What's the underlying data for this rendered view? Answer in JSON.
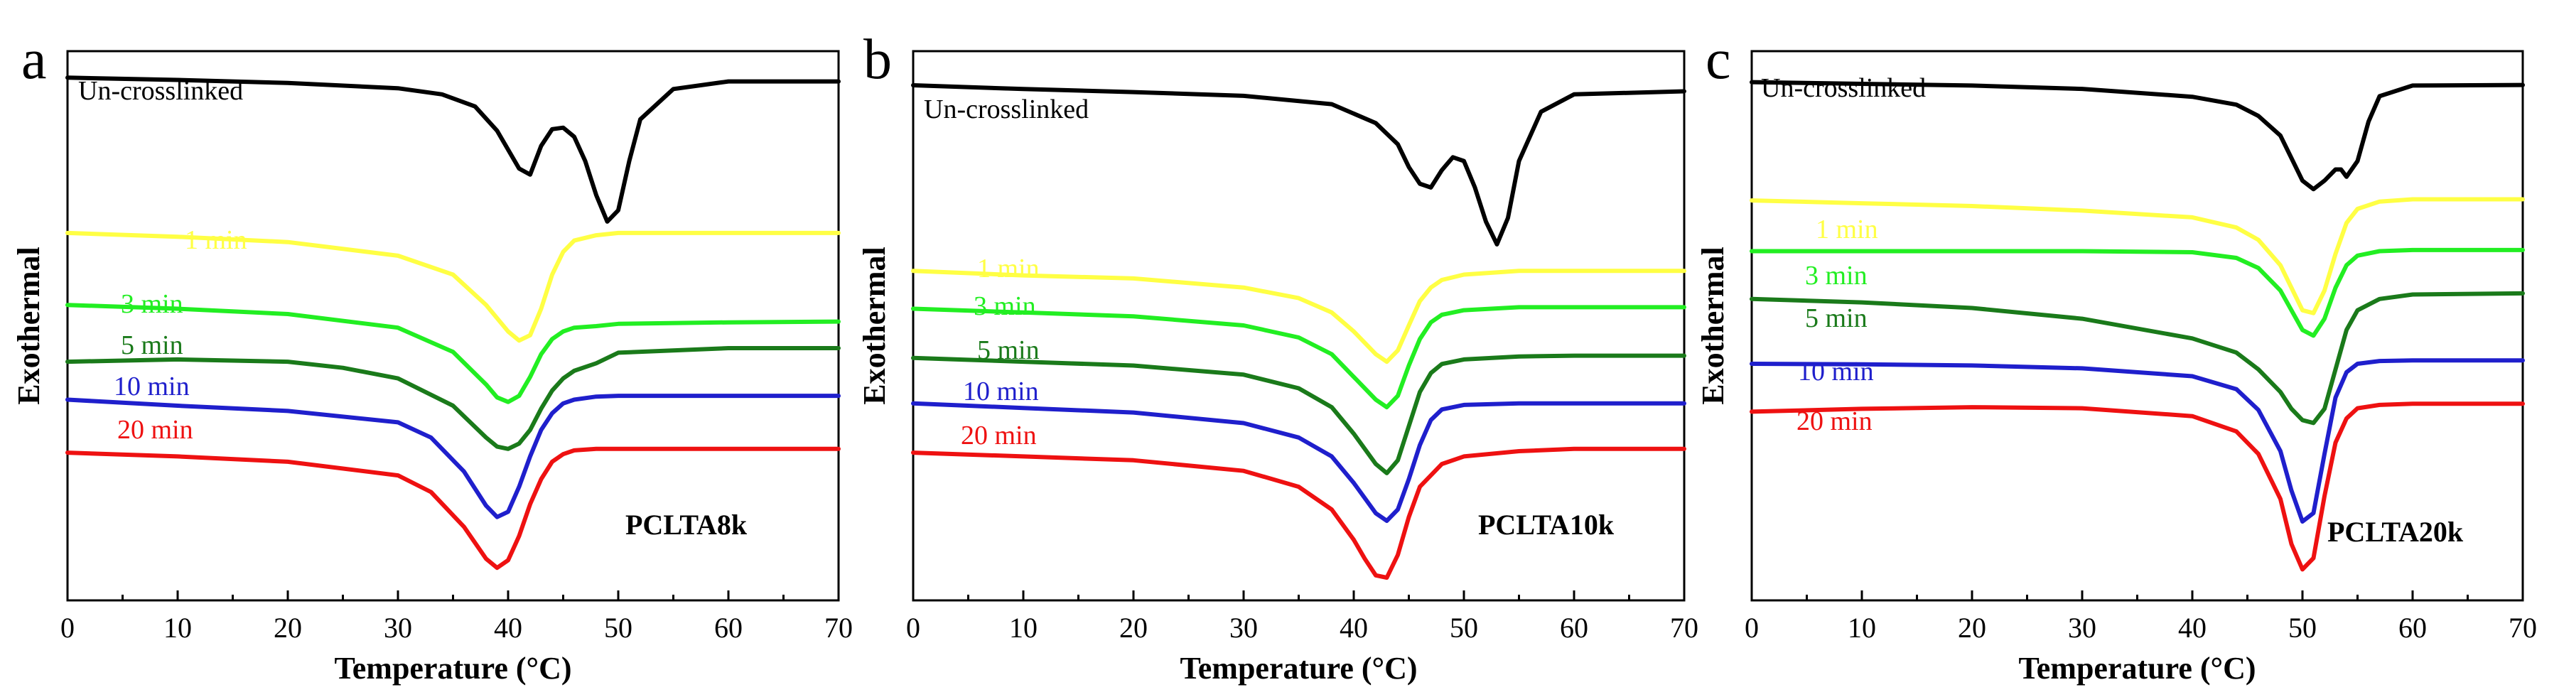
{
  "chart_data": [
    {
      "panel": "a",
      "type": "line",
      "title": "",
      "xlabel": "Temperature (°C)",
      "ylabel": "Exothermal",
      "sample": "PCLTA8k",
      "xlim": [
        0,
        70
      ],
      "xticks": [
        0,
        10,
        20,
        30,
        40,
        50,
        60,
        70
      ],
      "grid": false,
      "series": [
        {
          "name": "Un-crosslinked",
          "color": "#000000",
          "baseline": 0.0,
          "x": [
            0,
            10,
            20,
            30,
            34,
            37,
            39,
            41,
            42,
            43,
            44,
            45,
            46,
            47,
            48,
            49,
            50,
            51,
            52,
            55,
            60,
            70
          ],
          "y": [
            0,
            -0.03,
            -0.07,
            -0.14,
            -0.22,
            -0.38,
            -0.7,
            -1.2,
            -1.28,
            -0.9,
            -0.68,
            -0.66,
            -0.78,
            -1.1,
            -1.55,
            -1.9,
            -1.75,
            -1.1,
            -0.55,
            -0.15,
            -0.05,
            -0.05
          ]
        },
        {
          "name": "1 min",
          "color": "#ffff44",
          "baseline": -2.05,
          "x": [
            0,
            10,
            20,
            30,
            35,
            38,
            40,
            41,
            42,
            43,
            44,
            45,
            46,
            48,
            50,
            60,
            70
          ],
          "y": [
            0,
            -0.05,
            -0.12,
            -0.3,
            -0.55,
            -0.95,
            -1.3,
            -1.42,
            -1.35,
            -1.0,
            -0.55,
            -0.25,
            -0.1,
            -0.03,
            0,
            0,
            0
          ]
        },
        {
          "name": "3 min",
          "color": "#22ee22",
          "baseline": -3.0,
          "x": [
            0,
            10,
            20,
            30,
            35,
            38,
            39,
            40,
            41,
            42,
            43,
            44,
            45,
            46,
            48,
            50,
            60,
            70
          ],
          "y": [
            0,
            -0.05,
            -0.12,
            -0.3,
            -0.62,
            -1.05,
            -1.22,
            -1.28,
            -1.2,
            -0.95,
            -0.65,
            -0.45,
            -0.35,
            -0.3,
            -0.28,
            -0.25,
            -0.23,
            -0.22
          ]
        },
        {
          "name": "5 min",
          "color": "#1a7a1a",
          "baseline": -3.75,
          "x": [
            0,
            10,
            20,
            25,
            30,
            35,
            38,
            39,
            40,
            41,
            42,
            43,
            44,
            45,
            46,
            48,
            50,
            60,
            70
          ],
          "y": [
            0,
            0.03,
            0.0,
            -0.08,
            -0.22,
            -0.58,
            -1.0,
            -1.12,
            -1.15,
            -1.08,
            -0.9,
            -0.62,
            -0.38,
            -0.22,
            -0.12,
            -0.02,
            0.12,
            0.18,
            0.18
          ]
        },
        {
          "name": "10 min",
          "color": "#1f1fcc",
          "baseline": -4.25,
          "x": [
            0,
            10,
            20,
            30,
            33,
            36,
            38,
            39,
            40,
            41,
            42,
            43,
            44,
            45,
            46,
            48,
            50,
            60,
            70
          ],
          "y": [
            0,
            -0.08,
            -0.15,
            -0.3,
            -0.5,
            -0.95,
            -1.4,
            -1.55,
            -1.48,
            -1.15,
            -0.75,
            -0.4,
            -0.18,
            -0.05,
            0.0,
            0.04,
            0.05,
            0.05,
            0.05
          ]
        },
        {
          "name": "20 min",
          "color": "#ee1111",
          "baseline": -4.95,
          "x": [
            0,
            10,
            20,
            30,
            33,
            36,
            38,
            39,
            40,
            41,
            42,
            43,
            44,
            45,
            46,
            48,
            50,
            60,
            70
          ],
          "y": [
            0,
            -0.05,
            -0.12,
            -0.3,
            -0.52,
            -0.98,
            -1.4,
            -1.52,
            -1.42,
            -1.1,
            -0.68,
            -0.35,
            -0.12,
            -0.02,
            0.03,
            0.05,
            0.05,
            0.05,
            0.05
          ]
        }
      ]
    },
    {
      "panel": "b",
      "type": "line",
      "title": "",
      "xlabel": "Temperature (°C)",
      "ylabel": "Exothermal",
      "sample": "PCLTA10k",
      "xlim": [
        0,
        70
      ],
      "xticks": [
        0,
        10,
        20,
        30,
        40,
        50,
        60,
        70
      ],
      "grid": false,
      "series": [
        {
          "name": "Un-crosslinked",
          "color": "#000000",
          "baseline": 0.0,
          "x": [
            0,
            10,
            20,
            30,
            38,
            42,
            44,
            45,
            46,
            47,
            48,
            49,
            50,
            51,
            52,
            53,
            54,
            55,
            57,
            60,
            70
          ],
          "y": [
            0,
            -0.05,
            -0.09,
            -0.14,
            -0.25,
            -0.5,
            -0.78,
            -1.08,
            -1.3,
            -1.35,
            -1.12,
            -0.95,
            -1.0,
            -1.35,
            -1.8,
            -2.1,
            -1.75,
            -1.0,
            -0.35,
            -0.12,
            -0.08
          ]
        },
        {
          "name": "1 min",
          "color": "#ffff44",
          "baseline": -2.45,
          "x": [
            0,
            10,
            20,
            30,
            35,
            38,
            40,
            42,
            43,
            44,
            45,
            46,
            47,
            48,
            50,
            55,
            60,
            70
          ],
          "y": [
            0,
            -0.06,
            -0.1,
            -0.22,
            -0.36,
            -0.55,
            -0.8,
            -1.1,
            -1.2,
            -1.05,
            -0.72,
            -0.4,
            -0.22,
            -0.12,
            -0.05,
            0.0,
            0.0,
            0.0
          ]
        },
        {
          "name": "3 min",
          "color": "#22ee22",
          "baseline": -2.95,
          "x": [
            0,
            10,
            20,
            30,
            35,
            38,
            40,
            42,
            43,
            44,
            45,
            46,
            47,
            48,
            50,
            55,
            60,
            70
          ],
          "y": [
            0,
            -0.05,
            -0.1,
            -0.22,
            -0.38,
            -0.6,
            -0.9,
            -1.2,
            -1.3,
            -1.15,
            -0.75,
            -0.4,
            -0.18,
            -0.08,
            -0.02,
            0.02,
            0.02,
            0.02
          ]
        },
        {
          "name": "5 min",
          "color": "#1a7a1a",
          "baseline": -3.6,
          "x": [
            0,
            10,
            20,
            30,
            35,
            38,
            40,
            42,
            43,
            44,
            45,
            46,
            47,
            48,
            50,
            55,
            60,
            70
          ],
          "y": [
            0,
            -0.05,
            -0.1,
            -0.22,
            -0.4,
            -0.65,
            -1.0,
            -1.4,
            -1.52,
            -1.35,
            -0.9,
            -0.45,
            -0.2,
            -0.08,
            -0.02,
            0.02,
            0.03,
            0.03
          ]
        },
        {
          "name": "10 min",
          "color": "#1f1fcc",
          "baseline": -4.2,
          "x": [
            0,
            10,
            20,
            30,
            35,
            38,
            40,
            42,
            43,
            44,
            45,
            46,
            47,
            48,
            50,
            55,
            60,
            70
          ],
          "y": [
            0,
            -0.06,
            -0.12,
            -0.26,
            -0.45,
            -0.7,
            -1.05,
            -1.45,
            -1.55,
            -1.4,
            -1.0,
            -0.55,
            -0.22,
            -0.08,
            -0.02,
            0.0,
            0.0,
            0.0
          ]
        },
        {
          "name": "20 min",
          "color": "#ee1111",
          "baseline": -4.85,
          "x": [
            0,
            10,
            20,
            30,
            35,
            38,
            40,
            41,
            42,
            43,
            44,
            45,
            46,
            48,
            50,
            55,
            60,
            70
          ],
          "y": [
            0,
            -0.05,
            -0.1,
            -0.24,
            -0.45,
            -0.75,
            -1.15,
            -1.4,
            -1.62,
            -1.65,
            -1.35,
            -0.85,
            -0.45,
            -0.15,
            -0.05,
            0.02,
            0.05,
            0.05
          ]
        }
      ]
    },
    {
      "panel": "c",
      "type": "line",
      "title": "",
      "xlabel": "Temperature (°C)",
      "ylabel": "Exothermal",
      "sample": "PCLTA20k",
      "xlim": [
        0,
        70
      ],
      "xticks": [
        0,
        10,
        20,
        30,
        40,
        50,
        60,
        70
      ],
      "grid": false,
      "series": [
        {
          "name": "Un-crosslinked",
          "color": "#000000",
          "baseline": 0.0,
          "x": [
            0,
            10,
            20,
            30,
            40,
            44,
            46,
            48,
            49,
            50,
            51,
            52,
            53,
            53.5,
            54,
            55,
            56,
            57,
            60,
            70
          ],
          "y": [
            0,
            -0.03,
            -0.06,
            -0.12,
            -0.26,
            -0.4,
            -0.6,
            -0.95,
            -1.35,
            -1.75,
            -1.9,
            -1.75,
            -1.55,
            -1.55,
            -1.68,
            -1.4,
            -0.7,
            -0.25,
            -0.06,
            -0.05
          ]
        },
        {
          "name": "1 min",
          "color": "#ffff44",
          "baseline": -2.1,
          "x": [
            0,
            10,
            20,
            30,
            40,
            44,
            46,
            48,
            49,
            50,
            51,
            52,
            53,
            54,
            55,
            57,
            60,
            70
          ],
          "y": [
            0,
            -0.05,
            -0.1,
            -0.18,
            -0.3,
            -0.48,
            -0.7,
            -1.15,
            -1.55,
            -1.95,
            -2.0,
            -1.6,
            -0.95,
            -0.4,
            -0.15,
            -0.02,
            0.02,
            0.02
          ]
        },
        {
          "name": "3 min",
          "color": "#22ee22",
          "baseline": -3.0,
          "x": [
            0,
            10,
            20,
            30,
            40,
            44,
            46,
            48,
            49,
            50,
            51,
            52,
            53,
            54,
            55,
            57,
            60,
            70
          ],
          "y": [
            0,
            0,
            0,
            0,
            -0.02,
            -0.12,
            -0.3,
            -0.7,
            -1.05,
            -1.4,
            -1.5,
            -1.2,
            -0.65,
            -0.25,
            -0.08,
            0,
            0.02,
            0.02
          ]
        },
        {
          "name": "5 min",
          "color": "#1a7a1a",
          "baseline": -3.85,
          "x": [
            0,
            10,
            20,
            30,
            40,
            44,
            46,
            48,
            49,
            50,
            51,
            52,
            53,
            54,
            55,
            57,
            60,
            70
          ],
          "y": [
            0,
            -0.06,
            -0.16,
            -0.35,
            -0.7,
            -0.95,
            -1.25,
            -1.65,
            -1.95,
            -2.15,
            -2.2,
            -1.95,
            -1.25,
            -0.55,
            -0.2,
            0.0,
            0.08,
            0.1
          ]
        },
        {
          "name": "10 min",
          "color": "#1f1fcc",
          "baseline": -5.0,
          "x": [
            0,
            10,
            20,
            30,
            40,
            44,
            46,
            48,
            49,
            50,
            51,
            52,
            53,
            54,
            55,
            57,
            60,
            70
          ],
          "y": [
            0,
            -0.01,
            -0.03,
            -0.08,
            -0.22,
            -0.45,
            -0.82,
            -1.55,
            -2.25,
            -2.8,
            -2.65,
            -1.6,
            -0.6,
            -0.15,
            0.0,
            0.05,
            0.06,
            0.06
          ]
        },
        {
          "name": "20 min",
          "color": "#ee1111",
          "baseline": -5.85,
          "x": [
            0,
            10,
            20,
            30,
            40,
            44,
            46,
            48,
            49,
            50,
            51,
            52,
            53,
            54,
            55,
            57,
            60,
            70
          ],
          "y": [
            0,
            0.05,
            0.08,
            0.06,
            -0.08,
            -0.35,
            -0.75,
            -1.55,
            -2.35,
            -2.8,
            -2.6,
            -1.5,
            -0.55,
            -0.12,
            0.06,
            0.12,
            0.14,
            0.14
          ]
        }
      ]
    }
  ]
}
